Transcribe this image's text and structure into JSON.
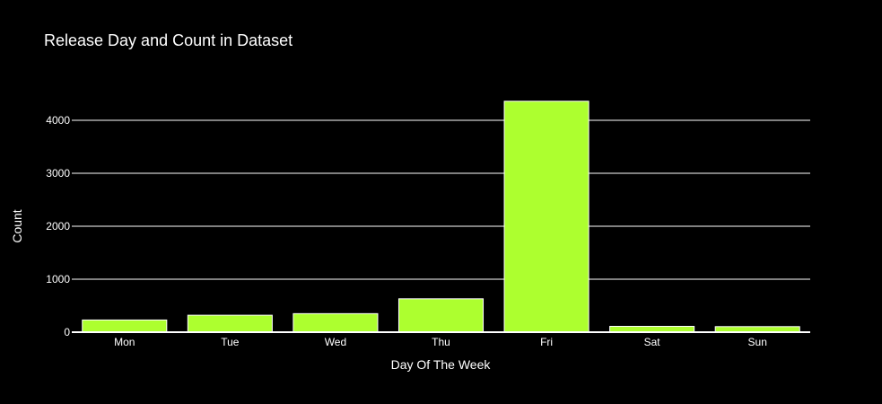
{
  "colors": {
    "background": "#000000",
    "bar": "#adff2f",
    "bar_outline": "#ffffff",
    "grid": "#ffffff",
    "text": "#ffffff"
  },
  "chart_data": {
    "type": "bar",
    "title": "Release Day and Count in Dataset",
    "xlabel": "Day Of The Week",
    "ylabel": "Count",
    "categories": [
      "Mon",
      "Tue",
      "Wed",
      "Thu",
      "Fri",
      "Sat",
      "Sun"
    ],
    "values": [
      230,
      320,
      350,
      630,
      4360,
      110,
      105
    ],
    "ylim": [
      0,
      4600
    ],
    "yticks": [
      0,
      1000,
      2000,
      3000,
      4000
    ],
    "ytick_labels": [
      "0",
      "1000",
      "2000",
      "3000",
      "4000"
    ],
    "grid": true,
    "legend": "none"
  }
}
